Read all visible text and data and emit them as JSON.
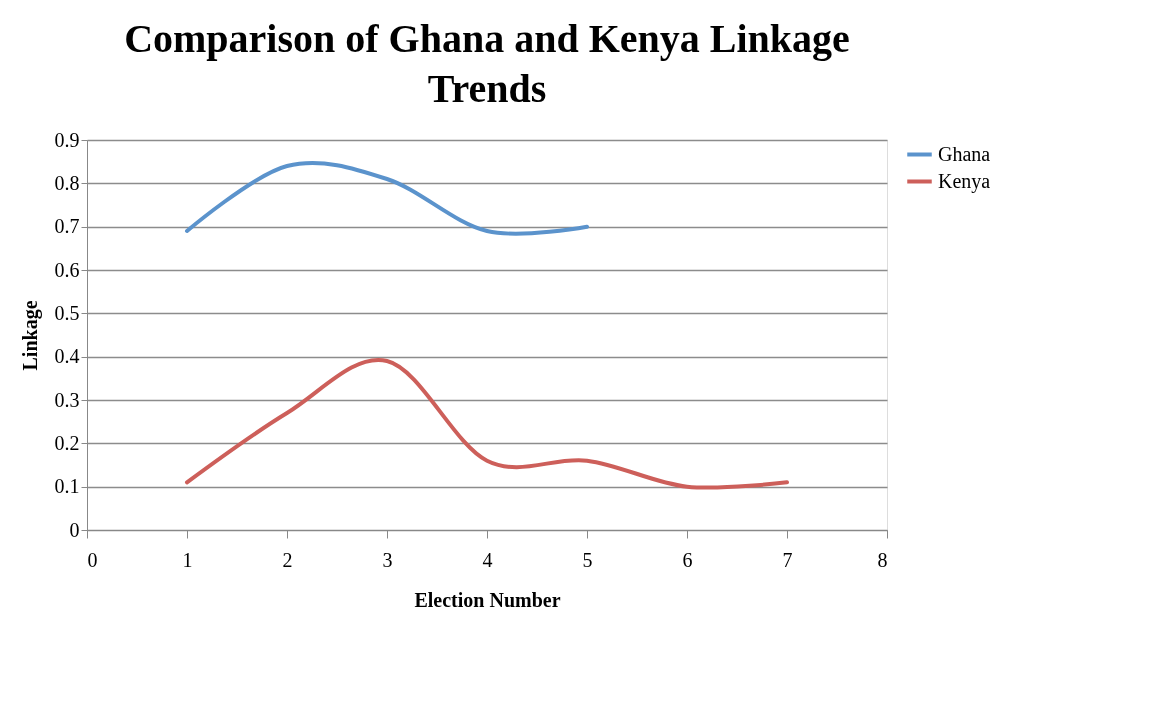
{
  "chart_data": {
    "type": "line",
    "title": "Comparison of Ghana and Kenya Linkage Trends",
    "xlabel": "Election Number",
    "ylabel": "Linkage",
    "xlim": [
      0,
      8
    ],
    "xticks": [
      0,
      1,
      2,
      3,
      4,
      5,
      6,
      7,
      8
    ],
    "ylim": [
      0,
      0.9
    ],
    "yticks": [
      0,
      0.1,
      0.2,
      0.3,
      0.4,
      0.5,
      0.6,
      0.7,
      0.8,
      0.9
    ],
    "grid": "y",
    "legend": "right",
    "marker": "none",
    "line_style": "solid",
    "series": [
      {
        "name": "Ghana",
        "color": "#5b93cc",
        "x": [
          1,
          2,
          3,
          4,
          5
        ],
        "values": [
          0.69,
          0.84,
          0.81,
          0.69,
          0.7
        ]
      },
      {
        "name": "Kenya",
        "color": "#cd5f5a",
        "x": [
          1,
          2,
          3,
          4,
          5,
          6,
          7
        ],
        "values": [
          0.11,
          0.27,
          0.39,
          0.16,
          0.16,
          0.1,
          0.11
        ]
      }
    ]
  }
}
